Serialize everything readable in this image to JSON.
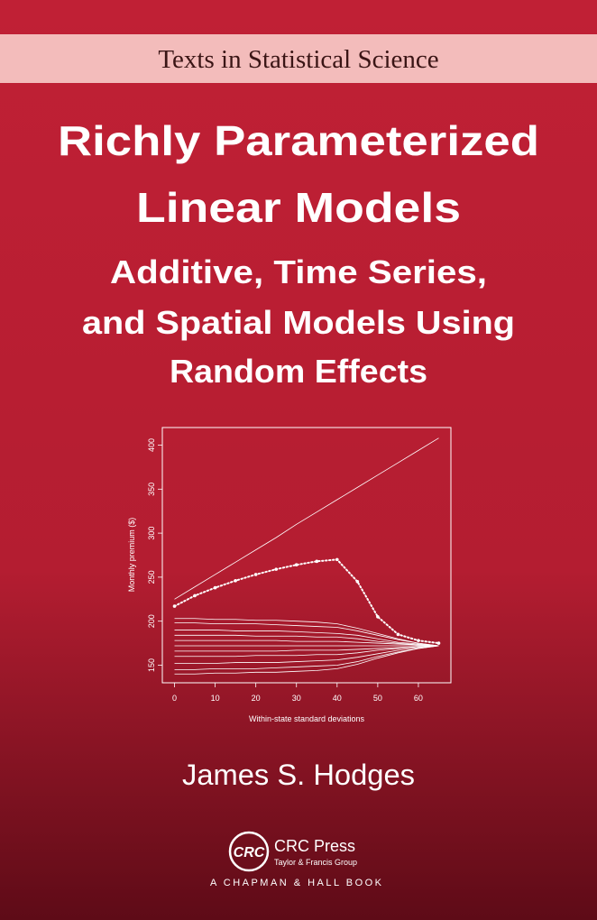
{
  "header": {
    "series": "Texts in Statistical Science"
  },
  "title": [
    "Richly Parameterized",
    "Linear Models"
  ],
  "subtitle": [
    "Additive, Time Series,",
    "and Spatial Models Using",
    "Random Effects"
  ],
  "chart_data": {
    "type": "line",
    "xlabel": "Within-state standard deviations",
    "ylabel": "Monthly premium ($)",
    "x": [
      0,
      5,
      10,
      15,
      20,
      25,
      30,
      35,
      40,
      45,
      50,
      55,
      60,
      65
    ],
    "xlim": [
      -3,
      68
    ],
    "xticks": [
      0,
      10,
      20,
      30,
      40,
      50,
      60
    ],
    "ylim": [
      130,
      420
    ],
    "yticks": [
      150,
      200,
      250,
      300,
      350,
      400
    ],
    "series": [
      {
        "color": "#ffffff",
        "values": [
          225,
          239,
          253,
          267,
          281,
          295,
          310,
          324,
          338,
          352,
          366,
          380,
          394,
          408
        ]
      },
      {
        "color": "#ffffff",
        "marker": "dots",
        "values": [
          217,
          229,
          238,
          246,
          253,
          259,
          264,
          268,
          270,
          245,
          205,
          185,
          178,
          175
        ]
      },
      {
        "color": "#ffffff",
        "values": [
          203,
          203,
          202,
          202,
          201,
          201,
          200,
          199,
          197,
          192,
          186,
          180,
          175,
          172
        ]
      },
      {
        "color": "#ffffff",
        "values": [
          198,
          198,
          197,
          197,
          197,
          196,
          195,
          194,
          193,
          189,
          184,
          179,
          175,
          172
        ]
      },
      {
        "color": "#ffffff",
        "values": [
          190,
          190,
          190,
          189,
          189,
          189,
          188,
          187,
          186,
          184,
          180,
          176,
          174,
          172
        ]
      },
      {
        "color": "#ffffff",
        "values": [
          184,
          184,
          184,
          184,
          183,
          183,
          183,
          182,
          182,
          180,
          177,
          175,
          173,
          172
        ]
      },
      {
        "color": "#ffffff",
        "values": [
          178,
          178,
          178,
          178,
          178,
          178,
          177,
          177,
          177,
          176,
          175,
          174,
          173,
          172
        ]
      },
      {
        "color": "#ffffff",
        "values": [
          172,
          172,
          172,
          172,
          172,
          172,
          172,
          172,
          172,
          172,
          172,
          172,
          172,
          172
        ]
      },
      {
        "color": "#ffffff",
        "values": [
          166,
          166,
          166,
          166,
          166,
          166,
          167,
          167,
          167,
          168,
          169,
          170,
          171,
          172
        ]
      },
      {
        "color": "#ffffff",
        "values": [
          160,
          160,
          160,
          160,
          161,
          161,
          161,
          162,
          162,
          164,
          167,
          169,
          171,
          172
        ]
      },
      {
        "color": "#ffffff",
        "values": [
          152,
          152,
          152,
          153,
          153,
          153,
          154,
          155,
          156,
          159,
          163,
          167,
          170,
          172
        ]
      },
      {
        "color": "#ffffff",
        "values": [
          145,
          145,
          146,
          146,
          146,
          147,
          148,
          149,
          150,
          154,
          160,
          165,
          169,
          172
        ]
      },
      {
        "color": "#ffffff",
        "values": [
          140,
          140,
          141,
          141,
          142,
          142,
          143,
          144,
          146,
          151,
          158,
          164,
          169,
          172
        ]
      }
    ]
  },
  "author": "James S. Hodges",
  "publisher": {
    "logo": "CRC",
    "name": "CRC Press",
    "group": "Taylor & Francis Group",
    "imprint": "A CHAPMAN & HALL BOOK"
  }
}
